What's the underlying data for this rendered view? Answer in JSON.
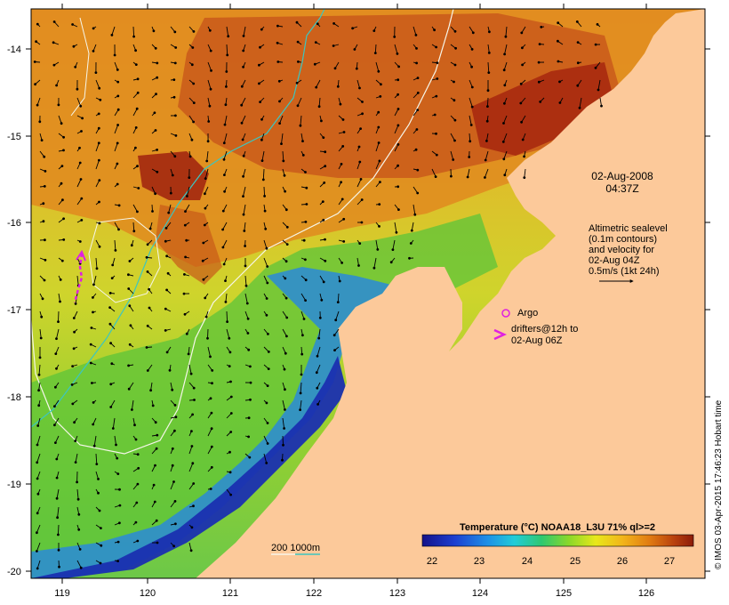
{
  "map": {
    "lon_ticks": [
      "119",
      "120",
      "121",
      "122",
      "123",
      "124",
      "125",
      "126"
    ],
    "lat_ticks": [
      "-14",
      "-15",
      "-16",
      "-17",
      "-18",
      "-19",
      "-20"
    ]
  },
  "annotations": {
    "date": "02-Aug-2008",
    "time": "04:37Z",
    "sealevel_lines": [
      "Altimetric sealevel",
      "(0.1m contours)",
      "and velocity for",
      "02-Aug 04Z",
      "0.5m/s (1kt 24h)"
    ],
    "argo_label": "Argo",
    "drifter_lines": [
      "drifters@12h to",
      "02-Aug 06Z"
    ],
    "depth_legend": "200  1000m"
  },
  "colorbar": {
    "title": "Temperature (°C) NOAA18_L3U 71% ql>=2",
    "tick_labels": [
      "22",
      "23",
      "24",
      "25",
      "26",
      "27"
    ]
  },
  "credit": "© IMOS 03-Apr-2015 17:46:23 Hobart time",
  "colors": {
    "land": "#fcc99a",
    "depth_200": "#f2f2e6",
    "depth_1000": "#3cc6c0",
    "argo": "#e020e0",
    "drifter": "#e020e0"
  }
}
